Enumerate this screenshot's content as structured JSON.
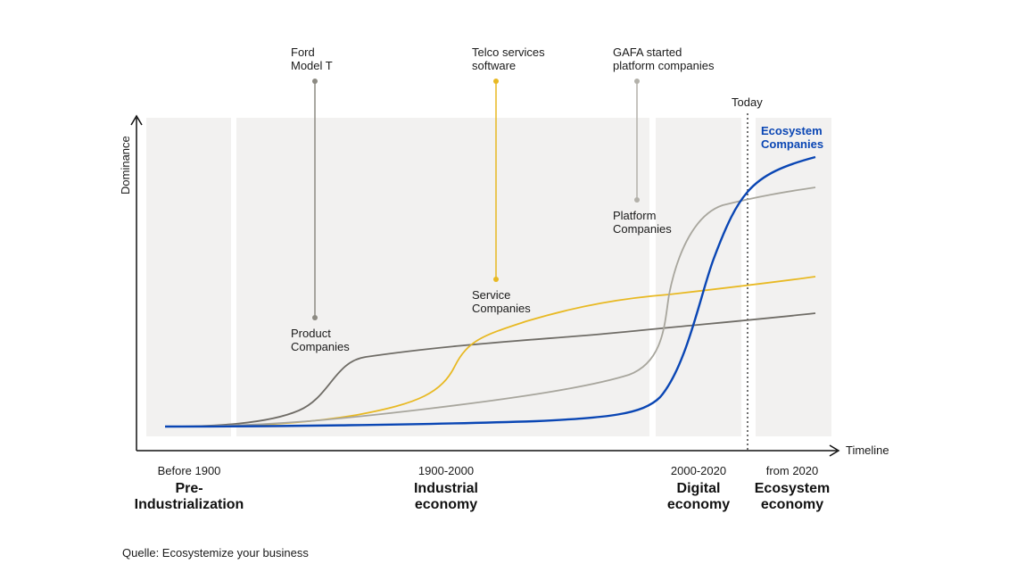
{
  "axes": {
    "y_label": "Dominance",
    "x_label": "Timeline",
    "today_label": "Today"
  },
  "eras": [
    {
      "years": "Before 1900",
      "name_line1": "Pre-",
      "name_line2": "Industrialization"
    },
    {
      "years": "1900-2000",
      "name_line1": "Industrial",
      "name_line2": "economy"
    },
    {
      "years": "2000-2020",
      "name_line1": "Digital",
      "name_line2": "economy"
    },
    {
      "years": "from 2020",
      "name_line1": "Ecosystem",
      "name_line2": "economy"
    }
  ],
  "milestones": [
    {
      "line1": "Ford",
      "line2": "Model T",
      "color": "#8c8a82"
    },
    {
      "line1": "Telco services",
      "line2": "software",
      "color": "#e8b923"
    },
    {
      "line1": "GAFA started",
      "line2": "platform companies",
      "color": "#b3b1aa"
    }
  ],
  "curves": [
    {
      "line1": "Product",
      "line2": "Companies",
      "color": "#6f6c66"
    },
    {
      "line1": "Service",
      "line2": "Companies",
      "color": "#e8b923"
    },
    {
      "line1": "Platform",
      "line2": "Companies",
      "color": "#a8a69d"
    },
    {
      "line1": "Ecosystem",
      "line2": "Companies",
      "color": "#0a46b4"
    }
  ],
  "source": "Quelle: Ecosystemize your business",
  "colors": {
    "panel": "#f2f1f0",
    "axis": "#111111",
    "accent": "#0a46b4"
  }
}
